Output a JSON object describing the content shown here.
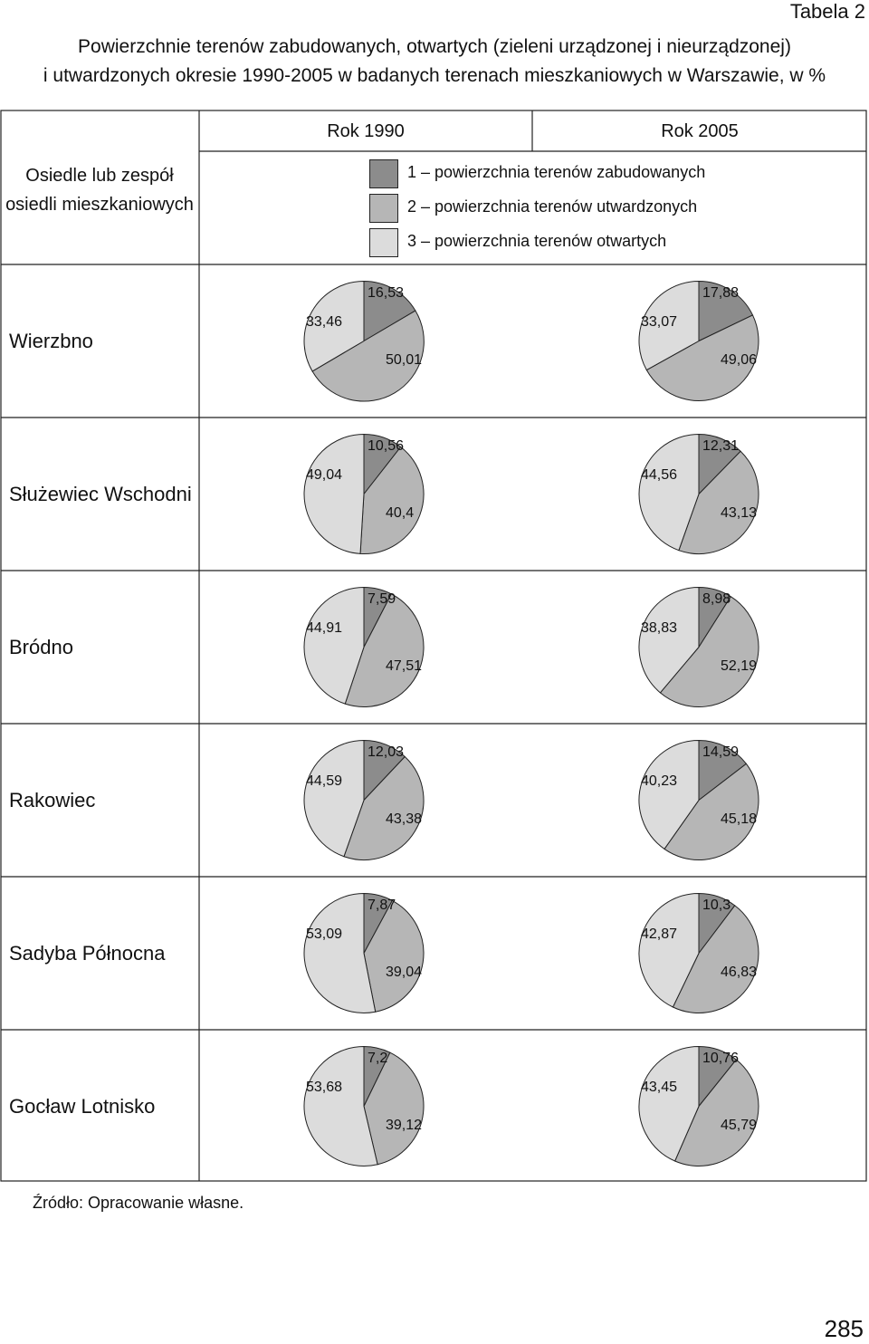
{
  "table_label": "Tabela 2",
  "title": {
    "line1": "Powierzchnie terenów zabudowanych, otwartych (zieleni urządzonej i nieurządzonej)",
    "line2": "i utwardzonych okresie 1990-2005 w badanych terenach mieszkaniowych w Warszawie, w %"
  },
  "header": {
    "left_column": "Osiedle lub zespół osiedli mieszkaniowych",
    "year_1990": "Rok 1990",
    "year_2005": "Rok 2005"
  },
  "legend": [
    {
      "label": "1 – powierzchnia terenów zabudowanych",
      "color": "#8c8c8c"
    },
    {
      "label": "2 – powierzchnia terenów utwardzonych",
      "color": "#b6b6b6"
    },
    {
      "label": "3 – powierzchnia terenów otwartych",
      "color": "#dcdcdc"
    }
  ],
  "colors": {
    "built": "#8c8c8c",
    "paved": "#b6b6b6",
    "open": "#dcdcdc",
    "stroke": "#222222"
  },
  "rows": [
    {
      "name": "Wierzbno",
      "y1990": {
        "built": "16,53",
        "paved": "50,01",
        "open": "33,46"
      },
      "y2005": {
        "built": "17,88",
        "paved": "49,06",
        "open": "33,07"
      }
    },
    {
      "name": "Służewiec Wschodni",
      "y1990": {
        "built": "10,56",
        "paved": "40,4",
        "open": "49,04"
      },
      "y2005": {
        "built": "12,31",
        "paved": "43,13",
        "open": "44,56"
      }
    },
    {
      "name": "Bródno",
      "y1990": {
        "built": "7,59",
        "paved": "47,51",
        "open": "44,91"
      },
      "y2005": {
        "built": "8,98",
        "paved": "52,19",
        "open": "38,83"
      }
    },
    {
      "name": "Rakowiec",
      "y1990": {
        "built": "12,03",
        "paved": "43,38",
        "open": "44,59"
      },
      "y2005": {
        "built": "14,59",
        "paved": "45,18",
        "open": "40,23"
      }
    },
    {
      "name": "Sadyba Północna",
      "y1990": {
        "built": "7,87",
        "paved": "39,04",
        "open": "53,09"
      },
      "y2005": {
        "built": "10,3",
        "paved": "46,83",
        "open": "42,87"
      }
    },
    {
      "name": "Gocław Lotnisko",
      "y1990": {
        "built": "7,2",
        "paved": "39,12",
        "open": "53,68"
      },
      "y2005": {
        "built": "10,76",
        "paved": "45,79",
        "open": "43,45"
      }
    }
  ],
  "source_note": "Źródło: Opracowanie własne.",
  "page_number": "285"
}
